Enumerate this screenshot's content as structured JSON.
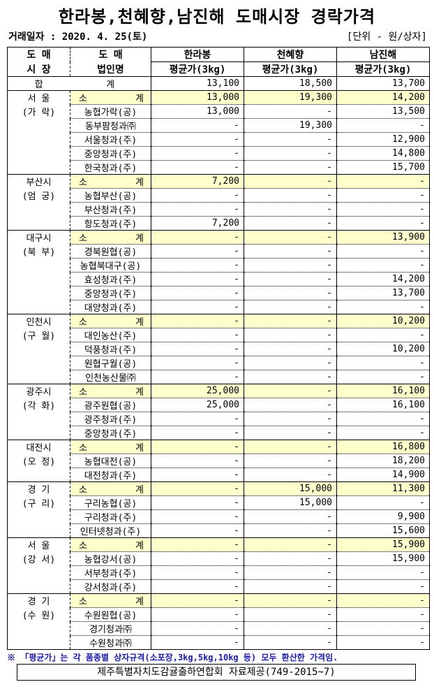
{
  "title": "한라봉,천혜향,남진해 도매시장 경락가격",
  "date": "거래일자 : 2020. 4. 25(토)",
  "unit": "[단위 - 원/상자]",
  "header": {
    "market": [
      "도 매",
      "시 장"
    ],
    "corp": [
      "도  매",
      "법인명"
    ],
    "products": [
      "한라봉",
      "천혜향",
      "남진해"
    ],
    "price_label": "평균가(3kg)"
  },
  "total": {
    "label_a": "합",
    "label_b": "계",
    "values": [
      "13,100",
      "18,500",
      "13,700"
    ]
  },
  "subtotal_label": [
    "소",
    "계"
  ],
  "markets": [
    {
      "name": [
        "서  울",
        "(가  락)"
      ],
      "subtotal": [
        "13,000",
        "19,300",
        "14,200"
      ],
      "rows": [
        {
          "corp": "농협가락(공)",
          "values": [
            "13,000",
            "-",
            "13,500"
          ]
        },
        {
          "corp": "동부팜청과㈜",
          "values": [
            "-",
            "19,300",
            "-"
          ]
        },
        {
          "corp": "서울청과(주)",
          "values": [
            "-",
            "-",
            "12,900"
          ]
        },
        {
          "corp": "중앙청과(주)",
          "values": [
            "-",
            "-",
            "14,800"
          ]
        },
        {
          "corp": "한국청과(주)",
          "values": [
            "-",
            "-",
            "15,700"
          ]
        }
      ]
    },
    {
      "name": [
        "부산시",
        "(엄  궁)"
      ],
      "subtotal": [
        "7,200",
        "-",
        "-"
      ],
      "rows": [
        {
          "corp": "농협부산(공)",
          "values": [
            "-",
            "-",
            "-"
          ]
        },
        {
          "corp": "부산청과(주)",
          "values": [
            "-",
            "-",
            "-"
          ]
        },
        {
          "corp": "항도청과(주)",
          "values": [
            "7,200",
            "-",
            "-"
          ]
        }
      ]
    },
    {
      "name": [
        "대구시",
        "(북  부)"
      ],
      "subtotal": [
        "-",
        "-",
        "13,900"
      ],
      "rows": [
        {
          "corp": "경북원협(공)",
          "values": [
            "-",
            "-",
            "-"
          ]
        },
        {
          "corp": "농협북대구(공)",
          "values": [
            "-",
            "-",
            "-"
          ]
        },
        {
          "corp": "효성청과(주)",
          "values": [
            "-",
            "-",
            "14,200"
          ]
        },
        {
          "corp": "중앙청과(주)",
          "values": [
            "-",
            "-",
            "13,700"
          ]
        },
        {
          "corp": "대양청과(주)",
          "values": [
            "-",
            "-",
            "-"
          ]
        }
      ]
    },
    {
      "name": [
        "인천시",
        "(구  월)"
      ],
      "subtotal": [
        "-",
        "-",
        "10,200"
      ],
      "rows": [
        {
          "corp": "대인농산(주)",
          "values": [
            "-",
            "-",
            "-"
          ]
        },
        {
          "corp": "덕풍청과(주)",
          "values": [
            "-",
            "-",
            "10,200"
          ]
        },
        {
          "corp": "원협구월(공)",
          "values": [
            "-",
            "-",
            "-"
          ]
        },
        {
          "corp": "인천농산물㈜",
          "values": [
            "-",
            "-",
            "-"
          ]
        }
      ]
    },
    {
      "name": [
        "광주시",
        "(각  화)"
      ],
      "subtotal": [
        "25,000",
        "-",
        "16,100"
      ],
      "rows": [
        {
          "corp": "광주원협(공)",
          "values": [
            "25,000",
            "-",
            "16,100"
          ]
        },
        {
          "corp": "광주청과(주)",
          "values": [
            "-",
            "-",
            "-"
          ]
        },
        {
          "corp": "중앙청과(주)",
          "values": [
            "-",
            "-",
            "-"
          ]
        }
      ]
    },
    {
      "name": [
        "대전시",
        "(오  정)"
      ],
      "subtotal": [
        "-",
        "-",
        "16,800"
      ],
      "rows": [
        {
          "corp": "농협대전(공)",
          "values": [
            "-",
            "-",
            "18,200"
          ]
        },
        {
          "corp": "대전청과(주)",
          "values": [
            "-",
            "-",
            "14,900"
          ]
        }
      ]
    },
    {
      "name": [
        "경  기",
        "(구  리)"
      ],
      "subtotal": [
        "-",
        "15,000",
        "11,300"
      ],
      "rows": [
        {
          "corp": "구리농협(공)",
          "values": [
            "-",
            "15,000",
            "-"
          ]
        },
        {
          "corp": "구리청과(주)",
          "values": [
            "-",
            "-",
            "9,900"
          ]
        },
        {
          "corp": "인터넷청과(주)",
          "values": [
            "-",
            "-",
            "15,600"
          ]
        }
      ]
    },
    {
      "name": [
        "서  울",
        "(강  서)"
      ],
      "subtotal": [
        "-",
        "-",
        "15,900"
      ],
      "rows": [
        {
          "corp": "농협강서(공)",
          "values": [
            "-",
            "-",
            "15,900"
          ]
        },
        {
          "corp": "서부청과(주)",
          "values": [
            "-",
            "-",
            "-"
          ]
        },
        {
          "corp": "강서청과(주)",
          "values": [
            "-",
            "-",
            "-"
          ]
        }
      ]
    },
    {
      "name": [
        "경  기",
        "(수  원)"
      ],
      "subtotal": [
        "-",
        "-",
        "-"
      ],
      "rows": [
        {
          "corp": "수원원협(공)",
          "values": [
            "-",
            "-",
            "-"
          ]
        },
        {
          "corp": "경기청과㈜",
          "values": [
            "-",
            "-",
            "-"
          ]
        },
        {
          "corp": "수원청과㈜",
          "values": [
            "-",
            "-",
            "-"
          ]
        }
      ]
    }
  ],
  "note": "※ 「평균가」는 각 품종별 상자규격(소포장,3kg,5kg,10kg 등) 모두 환산한 가격임.",
  "source": "제주특별자치도감귤출하연합회 자료제공(749-2015~7)"
}
